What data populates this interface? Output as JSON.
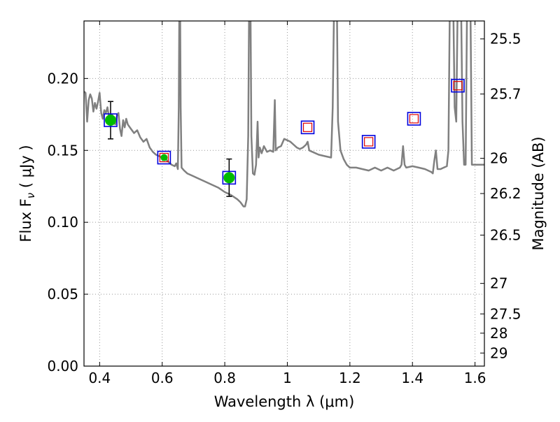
{
  "chart_data": {
    "type": "scatter",
    "xlabel": "Wavelength  λ (μm)",
    "ylabel": "Flux  F",
    "ylabel_sub": "ν",
    "ylabel_unit": "( μJy )",
    "y2label": "Magnitude (AB)",
    "xlim": [
      0.35,
      1.63
    ],
    "ylim": [
      0.0,
      0.24
    ],
    "grid": true,
    "x_ticks": [
      {
        "value": 0.4,
        "label": "0.4"
      },
      {
        "value": 0.6,
        "label": "0.6"
      },
      {
        "value": 0.8,
        "label": "0.8"
      },
      {
        "value": 1.0,
        "label": "1"
      },
      {
        "value": 1.2,
        "label": "1.2"
      },
      {
        "value": 1.4,
        "label": "1.4"
      },
      {
        "value": 1.6,
        "label": "1.6"
      }
    ],
    "y_ticks": [
      {
        "value": 0.0,
        "label": "0.00"
      },
      {
        "value": 0.05,
        "label": "0.05"
      },
      {
        "value": 0.1,
        "label": "0.10"
      },
      {
        "value": 0.15,
        "label": "0.15"
      },
      {
        "value": 0.2,
        "label": "0.20"
      }
    ],
    "y2_ticks": [
      {
        "flux": 0.2275,
        "label": "25.5"
      },
      {
        "flux": 0.1892,
        "label": "25.7"
      },
      {
        "flux": 0.1445,
        "label": "26"
      },
      {
        "flux": 0.12,
        "label": "26.2"
      },
      {
        "flux": 0.0911,
        "label": "26.5"
      },
      {
        "flux": 0.0575,
        "label": "27"
      },
      {
        "flux": 0.0363,
        "label": "27.5"
      },
      {
        "flux": 0.0229,
        "label": "28"
      },
      {
        "flux": 0.0091,
        "label": "29"
      }
    ],
    "template_spectrum": {
      "color": "#808080",
      "points": [
        [
          0.35,
          0.191
        ],
        [
          0.355,
          0.19
        ],
        [
          0.36,
          0.17
        ],
        [
          0.365,
          0.185
        ],
        [
          0.37,
          0.189
        ],
        [
          0.375,
          0.186
        ],
        [
          0.38,
          0.177
        ],
        [
          0.385,
          0.183
        ],
        [
          0.39,
          0.179
        ],
        [
          0.395,
          0.184
        ],
        [
          0.4,
          0.19
        ],
        [
          0.405,
          0.176
        ],
        [
          0.41,
          0.172
        ],
        [
          0.415,
          0.178
        ],
        [
          0.42,
          0.176
        ],
        [
          0.425,
          0.18
        ],
        [
          0.43,
          0.173
        ],
        [
          0.44,
          0.175
        ],
        [
          0.45,
          0.168
        ],
        [
          0.455,
          0.174
        ],
        [
          0.46,
          0.176
        ],
        [
          0.465,
          0.165
        ],
        [
          0.47,
          0.16
        ],
        [
          0.475,
          0.171
        ],
        [
          0.48,
          0.166
        ],
        [
          0.485,
          0.172
        ],
        [
          0.49,
          0.168
        ],
        [
          0.5,
          0.165
        ],
        [
          0.51,
          0.162
        ],
        [
          0.52,
          0.164
        ],
        [
          0.53,
          0.159
        ],
        [
          0.54,
          0.156
        ],
        [
          0.55,
          0.158
        ],
        [
          0.56,
          0.152
        ],
        [
          0.57,
          0.149
        ],
        [
          0.58,
          0.147
        ],
        [
          0.59,
          0.146
        ],
        [
          0.6,
          0.145
        ],
        [
          0.61,
          0.144
        ],
        [
          0.62,
          0.142
        ],
        [
          0.63,
          0.14
        ],
        [
          0.64,
          0.139
        ],
        [
          0.645,
          0.141
        ],
        [
          0.65,
          0.137
        ],
        [
          0.653,
          0.18
        ],
        [
          0.655,
          0.26
        ],
        [
          0.657,
          0.26
        ],
        [
          0.659,
          0.18
        ],
        [
          0.662,
          0.138
        ],
        [
          0.67,
          0.136
        ],
        [
          0.68,
          0.134
        ],
        [
          0.7,
          0.132
        ],
        [
          0.72,
          0.13
        ],
        [
          0.74,
          0.128
        ],
        [
          0.76,
          0.126
        ],
        [
          0.78,
          0.124
        ],
        [
          0.8,
          0.121
        ],
        [
          0.82,
          0.119
        ],
        [
          0.84,
          0.116
        ],
        [
          0.85,
          0.114
        ],
        [
          0.86,
          0.111
        ],
        [
          0.865,
          0.111
        ],
        [
          0.87,
          0.116
        ],
        [
          0.875,
          0.16
        ],
        [
          0.878,
          0.26
        ],
        [
          0.882,
          0.26
        ],
        [
          0.885,
          0.16
        ],
        [
          0.89,
          0.134
        ],
        [
          0.895,
          0.133
        ],
        [
          0.9,
          0.14
        ],
        [
          0.905,
          0.17
        ],
        [
          0.908,
          0.145
        ],
        [
          0.912,
          0.152
        ],
        [
          0.918,
          0.148
        ],
        [
          0.925,
          0.153
        ],
        [
          0.935,
          0.149
        ],
        [
          0.945,
          0.15
        ],
        [
          0.955,
          0.149
        ],
        [
          0.96,
          0.185
        ],
        [
          0.963,
          0.15
        ],
        [
          0.97,
          0.152
        ],
        [
          0.98,
          0.153
        ],
        [
          0.99,
          0.158
        ],
        [
          1.0,
          0.157
        ],
        [
          1.01,
          0.156
        ],
        [
          1.02,
          0.154
        ],
        [
          1.03,
          0.152
        ],
        [
          1.04,
          0.151
        ],
        [
          1.05,
          0.152
        ],
        [
          1.06,
          0.154
        ],
        [
          1.065,
          0.156
        ],
        [
          1.07,
          0.15
        ],
        [
          1.08,
          0.149
        ],
        [
          1.1,
          0.147
        ],
        [
          1.12,
          0.146
        ],
        [
          1.14,
          0.145
        ],
        [
          1.145,
          0.18
        ],
        [
          1.15,
          0.26
        ],
        [
          1.158,
          0.26
        ],
        [
          1.162,
          0.17
        ],
        [
          1.17,
          0.15
        ],
        [
          1.18,
          0.144
        ],
        [
          1.19,
          0.14
        ],
        [
          1.2,
          0.138
        ],
        [
          1.22,
          0.138
        ],
        [
          1.24,
          0.137
        ],
        [
          1.26,
          0.136
        ],
        [
          1.28,
          0.138
        ],
        [
          1.3,
          0.136
        ],
        [
          1.32,
          0.138
        ],
        [
          1.34,
          0.136
        ],
        [
          1.36,
          0.138
        ],
        [
          1.365,
          0.14
        ],
        [
          1.37,
          0.153
        ],
        [
          1.375,
          0.14
        ],
        [
          1.38,
          0.138
        ],
        [
          1.4,
          0.139
        ],
        [
          1.42,
          0.138
        ],
        [
          1.44,
          0.137
        ],
        [
          1.46,
          0.135
        ],
        [
          1.465,
          0.134
        ],
        [
          1.47,
          0.143
        ],
        [
          1.475,
          0.15
        ],
        [
          1.48,
          0.137
        ],
        [
          1.49,
          0.137
        ],
        [
          1.5,
          0.138
        ],
        [
          1.51,
          0.139
        ],
        [
          1.515,
          0.15
        ],
        [
          1.52,
          0.26
        ],
        [
          1.53,
          0.26
        ],
        [
          1.535,
          0.18
        ],
        [
          1.54,
          0.17
        ],
        [
          1.545,
          0.26
        ],
        [
          1.555,
          0.26
        ],
        [
          1.56,
          0.17
        ],
        [
          1.565,
          0.14
        ],
        [
          1.57,
          0.14
        ],
        [
          1.575,
          0.26
        ],
        [
          1.585,
          0.26
        ],
        [
          1.59,
          0.14
        ],
        [
          1.6,
          0.14
        ],
        [
          1.63,
          0.14
        ]
      ]
    },
    "measured_points": [
      {
        "x": 0.435,
        "y": 0.171,
        "err": 0.013
      },
      {
        "x": 0.606,
        "y": 0.145,
        "err": 0.0
      },
      {
        "x": 0.814,
        "y": 0.131,
        "err": 0.013
      }
    ],
    "model_red_squares": [
      {
        "x": 0.606,
        "y": 0.145
      },
      {
        "x": 1.065,
        "y": 0.166
      },
      {
        "x": 1.26,
        "y": 0.156
      },
      {
        "x": 1.405,
        "y": 0.172
      },
      {
        "x": 1.545,
        "y": 0.195
      }
    ],
    "blue_squares": [
      {
        "x": 0.435,
        "y": 0.171
      },
      {
        "x": 0.606,
        "y": 0.145
      },
      {
        "x": 0.814,
        "y": 0.131
      },
      {
        "x": 1.065,
        "y": 0.166
      },
      {
        "x": 1.26,
        "y": 0.156
      },
      {
        "x": 1.405,
        "y": 0.172
      },
      {
        "x": 1.545,
        "y": 0.195
      }
    ],
    "colors": {
      "spectrum": "#808080",
      "measured_fill": "#00bb00",
      "blue_square": "#0000dd",
      "red_square": "#dd0000",
      "grid": "#999999"
    }
  }
}
